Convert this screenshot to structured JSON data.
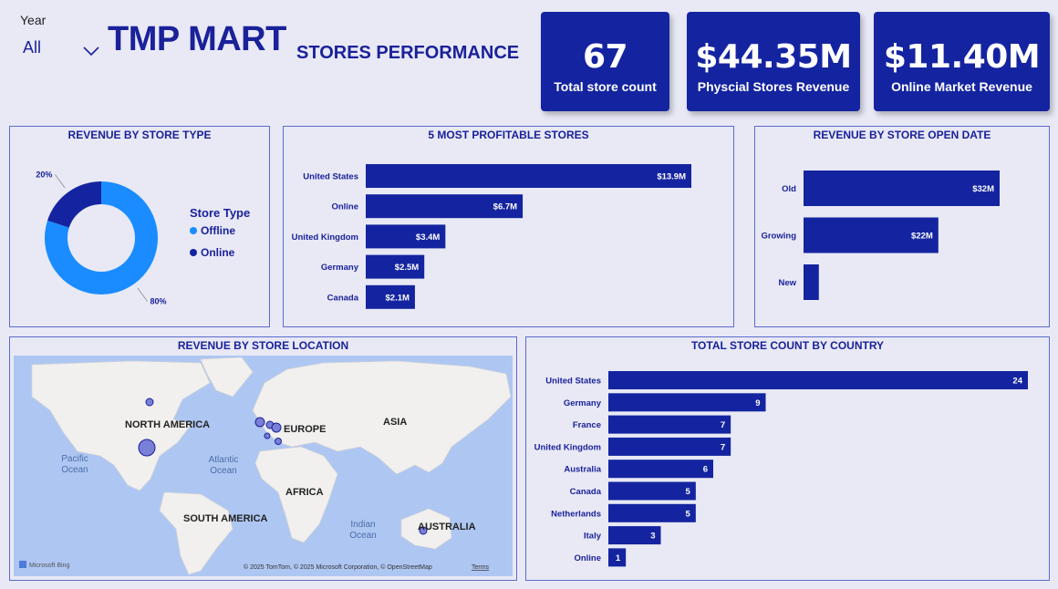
{
  "header": {
    "year_label": "Year",
    "year_value": "All",
    "title": "TMP MART",
    "subtitle": "STORES PERFORMANCE"
  },
  "kpis": [
    {
      "value": "67",
      "label": "Total store count"
    },
    {
      "value": "$44.35M",
      "label": "Physcial Stores Revenue"
    },
    {
      "value": "$11.40M",
      "label": "Online Market Revenue"
    }
  ],
  "colors": {
    "bar": "#1424a0",
    "offline": "#1a8cff",
    "online": "#1424a0",
    "accent": "#1a2199"
  },
  "map": {
    "title": "REVENUE BY STORE LOCATION",
    "labels": {
      "north_america": "NORTH AMERICA",
      "europe": "EUROPE",
      "asia": "ASIA",
      "africa": "AFRICA",
      "south_america": "SOUTH AMERICA",
      "australia": "AUSTRALIA",
      "pacific": "Pacific\nOcean",
      "atlantic": "Atlantic\nOcean",
      "indian": "Indian\nOcean"
    },
    "credit": "© 2025 TomTom, © 2025 Microsoft Corporation, © OpenStreetMap",
    "terms": "Terms",
    "brand": "Microsoft Bing"
  },
  "chart_data": [
    {
      "id": "store-type",
      "type": "pie",
      "title": "REVENUE BY STORE TYPE",
      "legend_title": "Store Type",
      "legend_position": "right",
      "categories": [
        "Offline",
        "Online"
      ],
      "values": [
        80,
        20
      ],
      "data_labels": [
        "80%",
        "20%"
      ]
    },
    {
      "id": "profitable",
      "type": "bar",
      "orientation": "horizontal",
      "title": "5 MOST PROFITABLE STORES",
      "categories": [
        "United States",
        "Online",
        "United Kingdom",
        "Germany",
        "Canada"
      ],
      "values": [
        13.9,
        6.7,
        3.4,
        2.5,
        2.1
      ],
      "data_labels": [
        "$13.9M",
        "$6.7M",
        "$3.4M",
        "$2.5M",
        "$2.1M"
      ],
      "xlim": [
        0,
        13.9
      ]
    },
    {
      "id": "open-date",
      "type": "bar",
      "orientation": "horizontal",
      "title": "REVENUE BY STORE OPEN DATE",
      "categories": [
        "Old",
        "Growing",
        "New"
      ],
      "values": [
        32,
        22,
        2.5
      ],
      "data_labels": [
        "$32M",
        "$22M",
        ""
      ],
      "xlim": [
        0,
        32
      ]
    },
    {
      "id": "country-count",
      "type": "bar",
      "orientation": "horizontal",
      "title": "TOTAL STORE COUNT BY COUNTRY",
      "categories": [
        "United States",
        "Germany",
        "France",
        "United Kingdom",
        "Australia",
        "Canada",
        "Netherlands",
        "Italy",
        "Online"
      ],
      "values": [
        24,
        9,
        7,
        7,
        6,
        5,
        5,
        3,
        1
      ],
      "data_labels": [
        "24",
        "9",
        "7",
        "7",
        "6",
        "5",
        "5",
        "3",
        "1"
      ],
      "xlim": [
        0,
        24
      ]
    }
  ]
}
